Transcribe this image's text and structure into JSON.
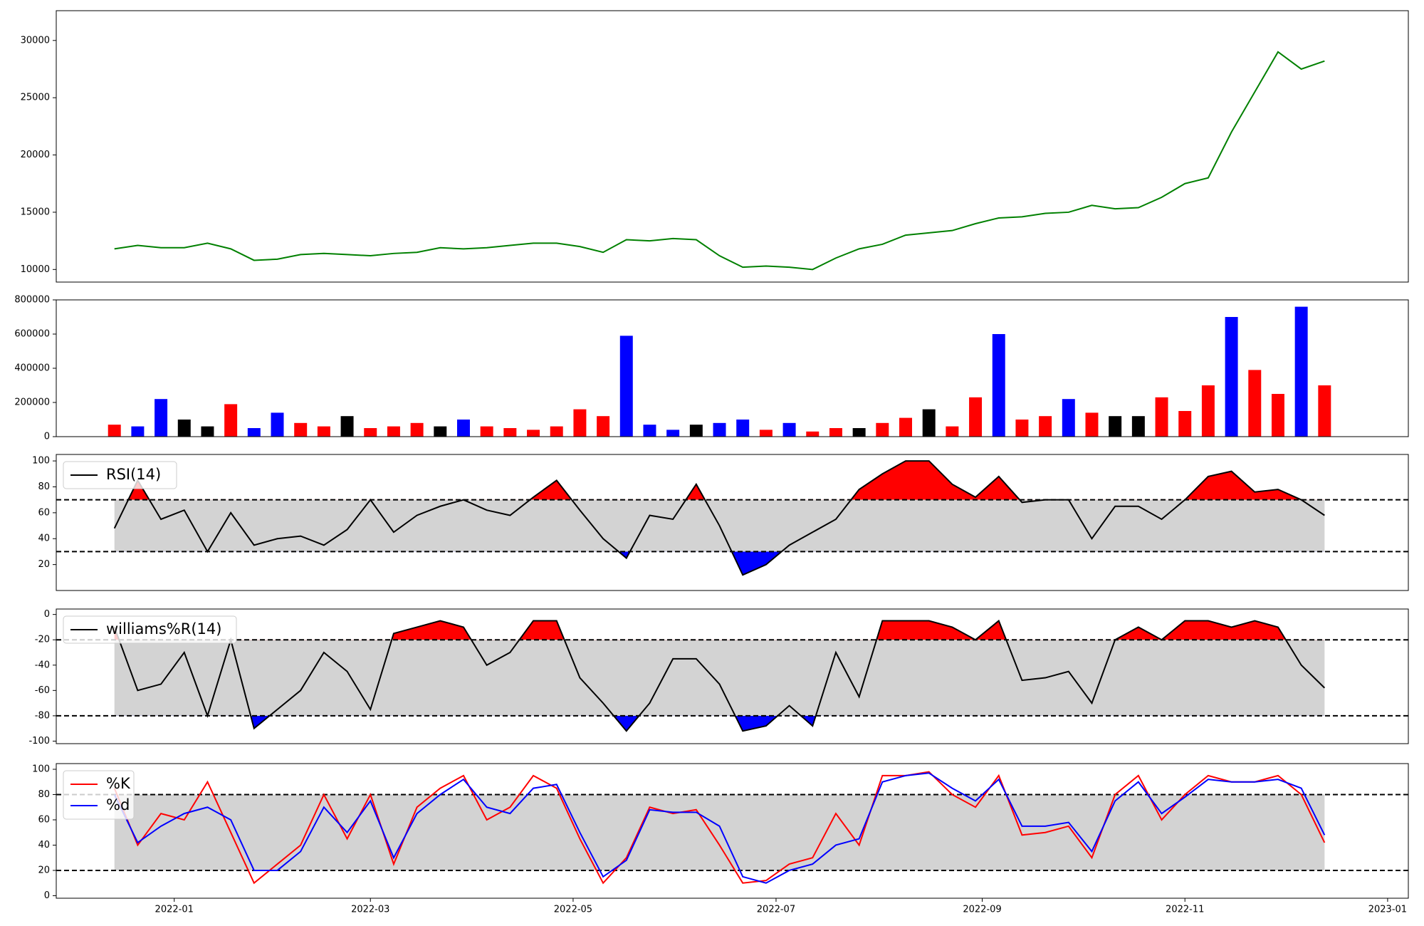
{
  "chart_data": [
    {
      "type": "line",
      "color": "#008000",
      "values": [
        11800,
        12100,
        11900,
        11900,
        12300,
        11800,
        10800,
        10900,
        11300,
        11400,
        11300,
        11200,
        11400,
        11500,
        11900,
        11800,
        11900,
        12100,
        12300,
        12300,
        12000,
        11500,
        12600,
        12500,
        12700,
        12600,
        11200,
        10200,
        10300,
        10200,
        10000,
        11000,
        11800,
        12200,
        13000,
        13200,
        13400,
        14000,
        14500,
        14600,
        14900,
        15000,
        15600,
        15300,
        15400,
        16300,
        17500,
        18000,
        22000,
        25500,
        29000,
        27500,
        28200
      ],
      "xlim": [
        -2.5,
        55.6
      ],
      "ylim": [
        8900,
        32600
      ],
      "yticks": [
        10000,
        15000,
        20000,
        25000,
        30000
      ]
    },
    {
      "type": "bar",
      "values": [
        70000,
        60000,
        220000,
        100000,
        60000,
        190000,
        50000,
        140000,
        80000,
        60000,
        120000,
        50000,
        60000,
        80000,
        60000,
        100000,
        60000,
        50000,
        40000,
        60000,
        160000,
        120000,
        590000,
        70000,
        40000,
        70000,
        80000,
        100000,
        40000,
        80000,
        30000,
        50000,
        50000,
        80000,
        110000,
        160000,
        60000,
        230000,
        600000,
        100000,
        120000,
        220000,
        140000,
        120000,
        120000,
        230000,
        150000,
        300000,
        700000,
        390000,
        250000,
        760000,
        300000
      ],
      "colors": [
        "#ff0000",
        "#0000ff",
        "#0000ff",
        "#000000",
        "#000000",
        "#ff0000",
        "#0000ff",
        "#0000ff",
        "#ff0000",
        "#ff0000",
        "#000000",
        "#ff0000",
        "#ff0000",
        "#ff0000",
        "#000000",
        "#0000ff",
        "#ff0000",
        "#ff0000",
        "#ff0000",
        "#ff0000",
        "#ff0000",
        "#ff0000",
        "#0000ff",
        "#0000ff",
        "#0000ff",
        "#000000",
        "#0000ff",
        "#0000ff",
        "#ff0000",
        "#0000ff",
        "#ff0000",
        "#ff0000",
        "#000000",
        "#ff0000",
        "#ff0000",
        "#000000",
        "#ff0000",
        "#ff0000",
        "#0000ff",
        "#ff0000",
        "#ff0000",
        "#0000ff",
        "#ff0000",
        "#000000",
        "#000000",
        "#ff0000",
        "#ff0000",
        "#ff0000",
        "#0000ff",
        "#ff0000",
        "#ff0000",
        "#0000ff",
        "#ff0000"
      ],
      "xlim": [
        -2.5,
        55.6
      ],
      "ylim": [
        0,
        800000
      ],
      "yticks": [
        0,
        200000,
        400000,
        600000,
        800000
      ]
    },
    {
      "type": "line",
      "legend": "upper left",
      "levels": [
        30,
        70
      ],
      "band_color": "#d3d3d3",
      "fill_above": "#ff0000",
      "fill_below": "#0000ff",
      "series": [
        {
          "name": "RSI(14)",
          "color": "#000000",
          "values": [
            48,
            85,
            55,
            62,
            30,
            60,
            35,
            40,
            42,
            35,
            47,
            70,
            45,
            58,
            65,
            70,
            62,
            58,
            72,
            85,
            62,
            40,
            25,
            58,
            55,
            82,
            50,
            12,
            20,
            35,
            45,
            55,
            78,
            90,
            100,
            100,
            82,
            72,
            88,
            68,
            70,
            70,
            40,
            65,
            65,
            55,
            70,
            88,
            92,
            76,
            78,
            70,
            58
          ]
        }
      ],
      "xlim": [
        -2.5,
        55.6
      ],
      "ylim": [
        0,
        105
      ],
      "yticks": [
        20,
        40,
        60,
        80,
        100
      ]
    },
    {
      "type": "line",
      "legend": "upper left",
      "levels": [
        -80,
        -20
      ],
      "band_color": "#d3d3d3",
      "fill_above": "#ff0000",
      "fill_below": "#0000ff",
      "series": [
        {
          "name": "williams%R(14)",
          "color": "#000000",
          "values": [
            -10,
            -60,
            -55,
            -30,
            -80,
            -20,
            -90,
            -75,
            -60,
            -30,
            -45,
            -75,
            -15,
            -10,
            -5,
            -10,
            -40,
            -30,
            -5,
            -5,
            -50,
            -70,
            -92,
            -70,
            -35,
            -35,
            -55,
            -92,
            -88,
            -72,
            -88,
            -30,
            -65,
            -5,
            -5,
            -5,
            -10,
            -20,
            -5,
            -52,
            -50,
            -45,
            -70,
            -20,
            -10,
            -20,
            -5,
            -5,
            -10,
            -5,
            -10,
            -40,
            -58
          ]
        }
      ],
      "xlim": [
        -2.5,
        55.6
      ],
      "ylim": [
        -102,
        4.3
      ],
      "yticks": [
        -100,
        -80,
        -60,
        -40,
        -20,
        0
      ]
    },
    {
      "type": "line",
      "legend": "upper left",
      "levels": [
        20,
        80
      ],
      "band_color": "#d3d3d3",
      "series": [
        {
          "name": "%K",
          "color": "#ff0000",
          "values": [
            85,
            40,
            65,
            60,
            90,
            50,
            10,
            25,
            40,
            80,
            45,
            80,
            25,
            70,
            85,
            95,
            60,
            70,
            95,
            85,
            45,
            10,
            30,
            70,
            65,
            68,
            40,
            10,
            12,
            25,
            30,
            65,
            40,
            95,
            95,
            98,
            80,
            70,
            95,
            48,
            50,
            55,
            30,
            80,
            95,
            60,
            80,
            95,
            90,
            90,
            95,
            80,
            42
          ]
        },
        {
          "name": "%d",
          "color": "#0000ff",
          "values": [
            80,
            42,
            55,
            65,
            70,
            60,
            20,
            20,
            35,
            70,
            50,
            75,
            30,
            65,
            80,
            92,
            70,
            65,
            85,
            88,
            50,
            15,
            28,
            68,
            66,
            66,
            55,
            15,
            10,
            20,
            25,
            40,
            45,
            90,
            95,
            97,
            85,
            75,
            92,
            55,
            55,
            58,
            35,
            75,
            90,
            65,
            78,
            92,
            90,
            90,
            92,
            85,
            48
          ]
        }
      ],
      "xlim": [
        -2.5,
        55.6
      ],
      "ylim": [
        -2,
        104.5
      ],
      "yticks": [
        0,
        20,
        40,
        60,
        80,
        100
      ],
      "xticks": [
        {
          "value": 2.57,
          "label": "2022-01"
        },
        {
          "value": 11,
          "label": "2022-03"
        },
        {
          "value": 19.71,
          "label": "2022-05"
        },
        {
          "value": 28.43,
          "label": "2022-07"
        },
        {
          "value": 37.29,
          "label": "2022-09"
        },
        {
          "value": 46,
          "label": "2022-11"
        },
        {
          "value": 54.71,
          "label": "2023-01"
        }
      ]
    }
  ]
}
